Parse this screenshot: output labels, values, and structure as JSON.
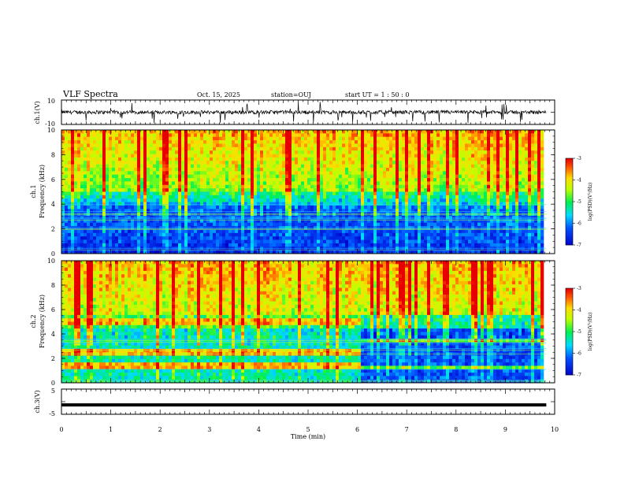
{
  "header": {
    "title": "VLF Spectra",
    "date": "Oct. 15, 2025",
    "station": "station=OUJ",
    "start_ut": "start  UT =   1 : 50 : 0"
  },
  "chart_data": [
    {
      "type": "line",
      "panel": "ch1-waveform",
      "ylabel": "ch.1(V)",
      "ylim": [
        -10,
        10
      ],
      "yticks": [
        "10",
        "-10"
      ],
      "x_range_min": [
        0,
        9.83
      ],
      "baseline": 0,
      "noise_amplitude": 1.5,
      "spike_amplitude": 9,
      "color": "#000000"
    },
    {
      "type": "heatmap",
      "panel": "ch1-spectrogram",
      "ylabel": "ch.1 Frequency (kHz)",
      "ylim": [
        0,
        10
      ],
      "yticks": [
        "0",
        "2",
        "4",
        "6",
        "8",
        "10"
      ],
      "x_range_min": [
        0,
        9.83
      ],
      "colorbar": {
        "label": "log(PSD)(V²/Hz)",
        "range": [
          -7,
          -3
        ],
        "ticks": [
          "-3",
          "-4",
          "-5",
          "-6",
          "-7"
        ]
      },
      "low_band_khz": [
        0,
        4
      ],
      "transition_khz": 5
    },
    {
      "type": "heatmap",
      "panel": "ch2-spectrogram",
      "ylabel": "ch.2 Frequency (kHz)",
      "ylim": [
        0,
        10
      ],
      "yticks": [
        "0",
        "2",
        "4",
        "6",
        "8",
        "10"
      ],
      "x_range_min": [
        0,
        9.83
      ],
      "colorbar": {
        "label": "log(PSD)(V²/Hz)",
        "range": [
          -7,
          -3
        ],
        "ticks": [
          "-3",
          "-4",
          "-5",
          "-6",
          "-7"
        ]
      },
      "band_change_min": 6.1,
      "early_bands_khz": [
        5.0,
        2.6,
        1.4
      ],
      "late_bands_khz": [
        3.5,
        1.2
      ]
    },
    {
      "type": "line",
      "panel": "ch3-waveform",
      "ylabel": "ch.3(V)",
      "ylim": [
        -5,
        5
      ],
      "yticks": [
        "5",
        "-5"
      ],
      "x_range_min": [
        0,
        9.83
      ],
      "value": -1.3,
      "color": "#000000"
    }
  ],
  "xaxis": {
    "label": "Time  (min)",
    "range": [
      0,
      10
    ],
    "ticks": [
      "0",
      "1",
      "2",
      "3",
      "4",
      "5",
      "6",
      "7",
      "8",
      "9",
      "10"
    ]
  },
  "colors": {
    "low": "#0000ff",
    "mid": "#00ff00",
    "high": "#ffff00",
    "max": "#ff0000"
  }
}
